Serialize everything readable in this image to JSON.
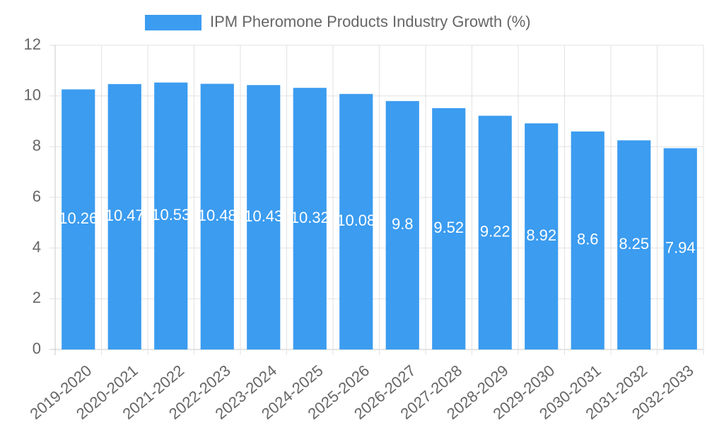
{
  "chart_data": {
    "type": "bar",
    "legend": {
      "label": "IPM Pheromone Products Industry Growth (%)",
      "position": "top"
    },
    "categories": [
      "2019-2020",
      "2020-2021",
      "2021-2022",
      "2022-2023",
      "2023-2024",
      "2024-2025",
      "2025-2026",
      "2026-2027",
      "2027-2028",
      "2028-2029",
      "2029-2030",
      "2030-2031",
      "2031-2032",
      "2032-2033"
    ],
    "series": [
      {
        "name": "IPM Pheromone Products Industry Growth (%)",
        "values": [
          10.26,
          10.47,
          10.53,
          10.48,
          10.43,
          10.32,
          10.08,
          9.8,
          9.52,
          9.22,
          8.92,
          8.6,
          8.25,
          7.94
        ],
        "color": "#3b9cf0"
      }
    ],
    "data_labels": [
      "10.26",
      "10.47",
      "10.53",
      "10.48",
      "10.43",
      "10.32",
      "10.08",
      "9.8",
      "9.52",
      "9.22",
      "8.92",
      "8.6",
      "8.25",
      "7.94"
    ],
    "ylim": [
      0,
      12
    ],
    "yticks": [
      0,
      2,
      4,
      6,
      8,
      10,
      12
    ],
    "grid": true,
    "colors": {
      "bar": "#3b9cf0",
      "grid": "#e2e2e2",
      "axis": "#c8c8c8",
      "tick_text": "#666666",
      "label_text": "#ffffff"
    }
  }
}
